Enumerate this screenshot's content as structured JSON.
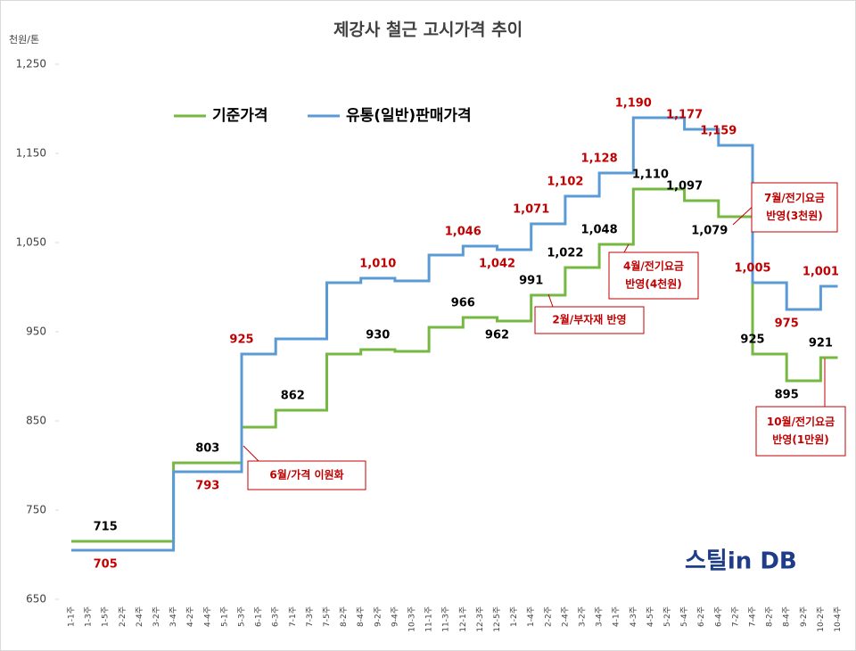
{
  "chart_data": {
    "type": "line",
    "title": "제강사 철근 고시가격 추이",
    "y_unit": "천원/톤",
    "categories": [
      "1-1주",
      "1-3주",
      "1-5주",
      "2-2주",
      "2-4주",
      "3-2주",
      "3-4주",
      "4-2주",
      "4-4주",
      "5-1주",
      "5-3주",
      "6-1주",
      "6-3주",
      "7-1주",
      "7-3주",
      "7-5주",
      "8-2주",
      "8-4주",
      "9-2주",
      "9-4주",
      "10-3주",
      "11-1주",
      "11-3주",
      "12-1주",
      "12-3주",
      "12-5주",
      "1-2주",
      "1-4주",
      "2-2주",
      "2-4주",
      "3-2주",
      "3-4주",
      "4-1주",
      "4-3주",
      "4-5주",
      "5-2주",
      "5-4주",
      "6-2주",
      "6-4주",
      "7-2주",
      "7-4주",
      "8-2주",
      "8-4주",
      "9-2주",
      "10-2주",
      "10-4주"
    ],
    "series": [
      {
        "name": "기준가격",
        "color": "#77b843",
        "label_color": "#000000",
        "values": [
          715,
          715,
          715,
          715,
          715,
          715,
          803,
          803,
          803,
          803,
          843,
          843,
          862,
          862,
          862,
          925,
          925,
          930,
          930,
          928,
          928,
          955,
          955,
          966,
          966,
          962,
          962,
          991,
          991,
          1022,
          1022,
          1048,
          1048,
          1110,
          1110,
          1110,
          1097,
          1097,
          1079,
          1079,
          925,
          925,
          895,
          895,
          921,
          921
        ],
        "value_labels": [
          null,
          null,
          "715",
          null,
          null,
          null,
          null,
          null,
          "803",
          null,
          null,
          null,
          null,
          "862",
          null,
          null,
          null,
          null,
          "930",
          null,
          null,
          null,
          null,
          "966",
          null,
          "962",
          null,
          "991",
          null,
          "1,022",
          null,
          "1,048",
          null,
          null,
          "1,110",
          null,
          "1,097",
          null,
          "1,079",
          null,
          "925",
          null,
          "895",
          null,
          "921",
          null
        ]
      },
      {
        "name": "유통(일반)판매가격",
        "color": "#5b9bd5",
        "label_color": "#c00000",
        "values": [
          705,
          705,
          705,
          705,
          705,
          705,
          793,
          793,
          793,
          793,
          925,
          925,
          942,
          942,
          942,
          1005,
          1005,
          1010,
          1010,
          1007,
          1007,
          1036,
          1036,
          1046,
          1046,
          1042,
          1042,
          1071,
          1071,
          1102,
          1102,
          1128,
          1128,
          1190,
          1190,
          1190,
          1177,
          1177,
          1159,
          1159,
          1005,
          1005,
          975,
          975,
          1001,
          1001
        ],
        "value_labels": [
          null,
          null,
          "705",
          null,
          null,
          null,
          null,
          null,
          "793",
          null,
          "925",
          null,
          null,
          null,
          null,
          null,
          null,
          null,
          "1,010",
          null,
          null,
          null,
          null,
          "1,046",
          null,
          "1,042",
          null,
          "1,071",
          null,
          "1,102",
          null,
          "1,128",
          null,
          "1,190",
          null,
          null,
          "1,177",
          null,
          "1,159",
          null,
          "1,005",
          null,
          "975",
          null,
          "1,001",
          null
        ]
      }
    ],
    "ylim": [
      650,
      1250
    ],
    "yticks": [
      650,
      750,
      850,
      950,
      {
        "value": 1050,
        "label": "1,050"
      },
      {
        "value": 1150,
        "label": "1,150"
      },
      {
        "value": 1250,
        "label": "1,250"
      }
    ],
    "grid": false,
    "legend": "top",
    "annotations": [
      {
        "lines": [
          "6월/가격 이원화"
        ]
      },
      {
        "lines": [
          "2월/부자재 반영"
        ]
      },
      {
        "lines": [
          "4월/전기요금",
          "반영(4천원)"
        ]
      },
      {
        "lines": [
          "7월/전기요금",
          "반영(3천원)"
        ]
      },
      {
        "lines": [
          "10월/전기요금",
          "반영(1만원)"
        ]
      }
    ],
    "logo": "스틸in DB"
  }
}
